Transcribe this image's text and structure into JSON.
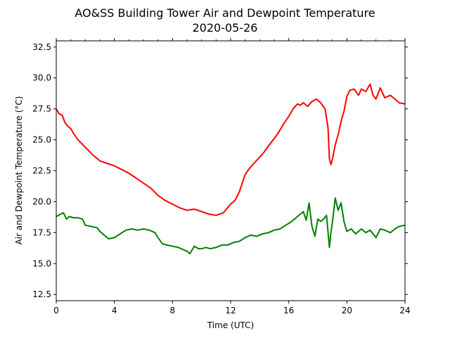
{
  "chart_data": {
    "type": "line",
    "title": "AO&SS Building Tower Air and Dewpoint Temperature",
    "subtitle": "2020-05-26",
    "xlabel": "Time (UTC)",
    "ylabel": "Air and Dewpoint Temperature (°C)",
    "xlim": [
      0,
      24
    ],
    "ylim": [
      12.0,
      33.0
    ],
    "xticks": [
      0,
      4,
      8,
      12,
      16,
      20,
      24
    ],
    "yticks": [
      12.5,
      15.0,
      17.5,
      20.0,
      22.5,
      25.0,
      27.5,
      30.0,
      32.5
    ],
    "xtick_labels": [
      "0",
      "4",
      "8",
      "12",
      "16",
      "20",
      "24"
    ],
    "ytick_labels": [
      "12.5",
      "15.0",
      "17.5",
      "20.0",
      "22.5",
      "25.0",
      "27.5",
      "30.0",
      "32.5"
    ],
    "minor_xticks": [
      1,
      2,
      3,
      5,
      6,
      7,
      9,
      10,
      11,
      13,
      14,
      15,
      17,
      18,
      19,
      21,
      22,
      23
    ],
    "grid": false,
    "series": [
      {
        "color": "#ff0000",
        "x": [
          0,
          0.2,
          0.4,
          0.6,
          0.8,
          1.0,
          1.2,
          1.5,
          2.0,
          2.5,
          3.0,
          3.5,
          4.0,
          4.5,
          5.0,
          5.5,
          6.0,
          6.5,
          7.0,
          7.5,
          8.0,
          8.5,
          9.0,
          9.5,
          10.0,
          10.5,
          11.0,
          11.5,
          12.0,
          12.3,
          12.6,
          12.8,
          13.0,
          13.3,
          13.6,
          14.0,
          14.3,
          14.6,
          15.0,
          15.3,
          15.6,
          16.0,
          16.3,
          16.6,
          16.8,
          17.0,
          17.3,
          17.6,
          17.9,
          18.2,
          18.5,
          18.7,
          18.8,
          18.9,
          19.0,
          19.2,
          19.4,
          19.6,
          19.8,
          20.0,
          20.2,
          20.5,
          20.8,
          21.0,
          21.3,
          21.6,
          21.8,
          22.0,
          22.3,
          22.6,
          23.0,
          23.3,
          23.6,
          24.0
        ],
        "values": [
          27.5,
          27.1,
          27.0,
          26.4,
          26.1,
          25.9,
          25.5,
          25.0,
          24.4,
          23.8,
          23.3,
          23.1,
          22.9,
          22.6,
          22.3,
          21.9,
          21.5,
          21.1,
          20.5,
          20.1,
          19.8,
          19.5,
          19.3,
          19.4,
          19.2,
          19.0,
          18.9,
          19.1,
          19.8,
          20.1,
          20.8,
          21.5,
          22.2,
          22.7,
          23.1,
          23.6,
          24.0,
          24.5,
          25.1,
          25.6,
          26.2,
          26.9,
          27.5,
          27.9,
          27.8,
          28.0,
          27.7,
          28.1,
          28.3,
          28.0,
          27.5,
          26.0,
          23.5,
          23.0,
          23.4,
          24.6,
          25.4,
          26.5,
          27.3,
          28.5,
          29.0,
          29.1,
          28.6,
          29.1,
          28.9,
          29.5,
          28.6,
          28.3,
          29.2,
          28.4,
          28.6,
          28.3,
          28.0,
          27.9
        ]
      },
      {
        "color": "#008000",
        "x": [
          0,
          0.3,
          0.5,
          0.7,
          0.9,
          1.2,
          1.5,
          1.8,
          2.0,
          2.4,
          2.8,
          3.0,
          3.3,
          3.6,
          4.0,
          4.4,
          4.8,
          5.2,
          5.6,
          6.0,
          6.4,
          6.8,
          7.0,
          7.3,
          7.6,
          8.0,
          8.4,
          8.8,
          9.0,
          9.2,
          9.5,
          9.8,
          10.0,
          10.3,
          10.6,
          11.0,
          11.4,
          11.8,
          12.2,
          12.6,
          13.0,
          13.4,
          13.8,
          14.2,
          14.6,
          15.0,
          15.4,
          15.8,
          16.2,
          16.6,
          17.0,
          17.2,
          17.4,
          17.6,
          17.8,
          18.0,
          18.2,
          18.4,
          18.6,
          18.8,
          18.9,
          19.0,
          19.2,
          19.4,
          19.6,
          19.8,
          20.0,
          20.3,
          20.6,
          21.0,
          21.3,
          21.6,
          22.0,
          22.3,
          22.6,
          23.0,
          23.3,
          23.6,
          24.0
        ],
        "values": [
          18.8,
          19.0,
          19.1,
          18.6,
          18.8,
          18.7,
          18.7,
          18.6,
          18.1,
          18.0,
          17.9,
          17.6,
          17.3,
          17.0,
          17.1,
          17.4,
          17.7,
          17.8,
          17.7,
          17.8,
          17.7,
          17.5,
          17.1,
          16.6,
          16.5,
          16.4,
          16.3,
          16.1,
          16.0,
          15.8,
          16.4,
          16.2,
          16.2,
          16.3,
          16.2,
          16.3,
          16.5,
          16.5,
          16.7,
          16.8,
          17.1,
          17.3,
          17.2,
          17.4,
          17.5,
          17.7,
          17.8,
          18.1,
          18.4,
          18.8,
          19.2,
          18.5,
          19.9,
          18.0,
          17.2,
          18.6,
          18.4,
          18.6,
          18.9,
          16.3,
          17.5,
          18.3,
          20.3,
          19.3,
          19.9,
          18.4,
          17.6,
          17.8,
          17.4,
          17.8,
          17.5,
          17.7,
          17.1,
          17.8,
          17.7,
          17.5,
          17.8,
          18.0,
          18.1
        ]
      }
    ]
  }
}
